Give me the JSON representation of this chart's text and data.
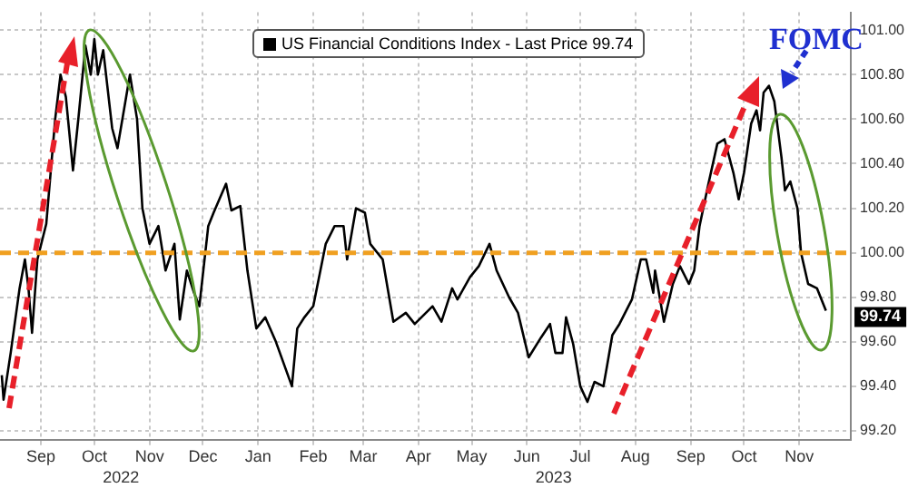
{
  "chart_data": {
    "type": "line",
    "legend": "top",
    "grid": true,
    "marker": "none",
    "line_style": "solid",
    "x": [
      "2022-08-24",
      "2022-08-25",
      "2022-08-29",
      "2022-09-03",
      "2022-09-06",
      "2022-09-08",
      "2022-09-10",
      "2022-09-13",
      "2022-09-18",
      "2022-09-23",
      "2022-09-26",
      "2022-09-29",
      "2022-10-03",
      "2022-10-06",
      "2022-10-10",
      "2022-10-13",
      "2022-10-15",
      "2022-10-17",
      "2022-10-20",
      "2022-10-25",
      "2022-10-28",
      "2022-11-04",
      "2022-11-08",
      "2022-11-11",
      "2022-11-15",
      "2022-11-20",
      "2022-11-24",
      "2022-11-29",
      "2022-12-02",
      "2022-12-06",
      "2022-12-10",
      "2022-12-13",
      "2022-12-18",
      "2022-12-21",
      "2022-12-28",
      "2022-12-31",
      "2023-01-05",
      "2023-01-09",
      "2023-01-14",
      "2023-01-19",
      "2023-01-25",
      "2023-02-03",
      "2023-02-06",
      "2023-02-10",
      "2023-02-15",
      "2023-02-22",
      "2023-02-27",
      "2023-03-04",
      "2023-03-06",
      "2023-03-11",
      "2023-03-16",
      "2023-03-19",
      "2023-03-26",
      "2023-04-01",
      "2023-04-08",
      "2023-04-13",
      "2023-04-23",
      "2023-04-28",
      "2023-05-04",
      "2023-05-07",
      "2023-05-14",
      "2023-05-19",
      "2023-05-25",
      "2023-05-29",
      "2023-06-05",
      "2023-06-10",
      "2023-06-16",
      "2023-06-23",
      "2023-06-28",
      "2023-07-01",
      "2023-07-05",
      "2023-07-07",
      "2023-07-11",
      "2023-07-15",
      "2023-07-19",
      "2023-07-23",
      "2023-07-28",
      "2023-07-30",
      "2023-08-02",
      "2023-08-06",
      "2023-08-13",
      "2023-08-18",
      "2023-08-21",
      "2023-08-25",
      "2023-08-26",
      "2023-08-31",
      "2023-09-05",
      "2023-09-09",
      "2023-09-14",
      "2023-09-17",
      "2023-09-20",
      "2023-09-25",
      "2023-09-30",
      "2023-10-04",
      "2023-10-09",
      "2023-10-12",
      "2023-10-15",
      "2023-10-19",
      "2023-10-22",
      "2023-10-24",
      "2023-10-26",
      "2023-10-29",
      "2023-11-01",
      "2023-11-05",
      "2023-11-07",
      "2023-11-10",
      "2023-11-14",
      "2023-11-16",
      "2023-11-20",
      "2023-11-25",
      "2023-11-30"
    ],
    "series": [
      {
        "name": "US Financial Conditions Index - Last Price 99.74",
        "color": "#000000",
        "values": [
          99.45,
          99.34,
          99.55,
          99.84,
          99.97,
          99.84,
          99.64,
          99.97,
          100.13,
          100.6,
          100.8,
          100.7,
          100.37,
          100.6,
          100.93,
          100.8,
          100.96,
          100.8,
          100.91,
          100.56,
          100.47,
          100.8,
          100.6,
          100.2,
          100.04,
          100.12,
          99.92,
          100.04,
          99.7,
          99.92,
          99.82,
          99.76,
          100.12,
          100.18,
          100.31,
          100.19,
          100.21,
          99.92,
          99.66,
          99.71,
          99.6,
          99.4,
          99.66,
          99.71,
          99.76,
          100.04,
          100.12,
          100.12,
          99.97,
          100.2,
          100.18,
          100.04,
          99.97,
          99.69,
          99.73,
          99.68,
          99.76,
          99.69,
          99.84,
          99.79,
          99.89,
          99.94,
          100.04,
          99.92,
          99.8,
          99.73,
          99.53,
          99.62,
          99.68,
          99.55,
          99.55,
          99.71,
          99.59,
          99.4,
          99.33,
          99.42,
          99.4,
          99.49,
          99.63,
          99.68,
          99.79,
          99.97,
          99.97,
          99.82,
          99.92,
          99.69,
          99.86,
          99.94,
          99.86,
          99.92,
          100.12,
          100.31,
          100.49,
          100.51,
          100.36,
          100.24,
          100.36,
          100.58,
          100.64,
          100.55,
          100.72,
          100.75,
          100.68,
          100.43,
          100.28,
          100.32,
          100.2,
          100.0,
          99.86,
          99.84,
          99.74
        ]
      }
    ],
    "xlim": [
      "2022-08-23",
      "2023-12-14"
    ],
    "xticks": [
      {
        "value": "2022-09-15",
        "label": "Sep"
      },
      {
        "value": "2022-10-15",
        "label": "Oct"
      },
      {
        "value": "2022-11-15",
        "label": "Nov"
      },
      {
        "value": "2022-12-15",
        "label": "Dec"
      },
      {
        "value": "2023-01-15",
        "label": "Jan"
      },
      {
        "value": "2023-02-15",
        "label": "Feb"
      },
      {
        "value": "2023-03-15",
        "label": "Mar"
      },
      {
        "value": "2023-04-15",
        "label": "Apr"
      },
      {
        "value": "2023-05-15",
        "label": "May"
      },
      {
        "value": "2023-06-15",
        "label": "Jun"
      },
      {
        "value": "2023-07-15",
        "label": "Jul"
      },
      {
        "value": "2023-08-15",
        "label": "Aug"
      },
      {
        "value": "2023-09-15",
        "label": "Sep"
      },
      {
        "value": "2023-10-15",
        "label": "Oct"
      },
      {
        "value": "2023-11-15",
        "label": "Nov"
      }
    ],
    "x2lim": [
      "2022-08-23",
      "2023-12-14"
    ],
    "x2ticks": [
      {
        "value": "2022-10-30",
        "label": "2022"
      },
      {
        "value": "2023-06-30",
        "label": "2023"
      }
    ],
    "ylim": [
      99.16,
      101.08
    ],
    "yticks": [
      {
        "value": 99.2,
        "label": "99.20"
      },
      {
        "value": 99.4,
        "label": "99.40"
      },
      {
        "value": 99.6,
        "label": "99.60"
      },
      {
        "value": 99.8,
        "label": "99.80"
      },
      {
        "value": 100,
        "label": "100.00"
      },
      {
        "value": 100.2,
        "label": "100.20"
      },
      {
        "value": 100.4,
        "label": "100.40"
      },
      {
        "value": 100.6,
        "label": "100.60"
      },
      {
        "value": 100.8,
        "label": "100.80"
      },
      {
        "value": 101,
        "label": "101.00"
      }
    ],
    "ref_lines": [
      {
        "axis": "y",
        "value": 100,
        "color": "#f0a020",
        "line_style": "dashed"
      }
    ],
    "annotations": [
      {
        "text": "FOMC",
        "x": "2023-10-29",
        "y": 100.75
      },
      "99.74"
    ]
  }
}
